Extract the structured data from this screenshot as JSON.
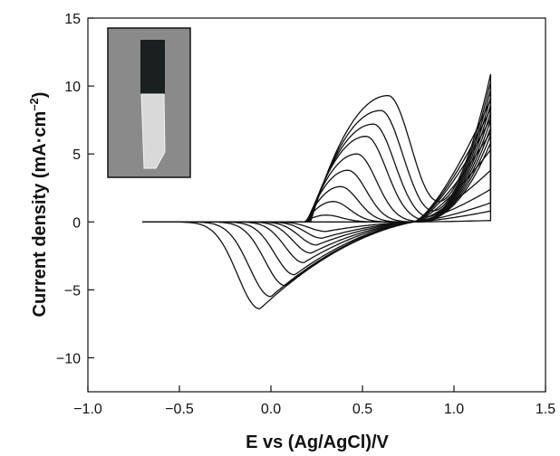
{
  "chart_data": {
    "type": "line",
    "xlabel": "E vs (Ag/AgCl)/V",
    "ylabel_main": "Current density (mA·cm",
    "ylabel_sup": "–2",
    "ylabel_end": ")",
    "xlim": [
      -1.0,
      1.5
    ],
    "ylim": [
      -12.5,
      15
    ],
    "x_ticks": [
      -1.0,
      -0.5,
      0.0,
      0.5,
      1.0,
      1.5
    ],
    "x_tick_labels": [
      "−1.0",
      "−0.5",
      "0.0",
      "0.5",
      "1.0",
      "1.5"
    ],
    "y_ticks": [
      -10,
      -5,
      0,
      5,
      10,
      15
    ],
    "y_tick_labels": [
      "−10",
      "−5",
      "0",
      "5",
      "10",
      "15"
    ],
    "grid": false,
    "inset": "photo of electrode: dark coated top section on light transparent substrate",
    "scan_range": [
      -0.7,
      1.2
    ],
    "series": [
      {
        "anodic_peak": [
          0.0,
          0.0
        ],
        "cathodic_peak": [
          0.0,
          0.0
        ],
        "end_current": 0.1
      },
      {
        "anodic_peak": [
          0.3,
          0.5
        ],
        "cathodic_peak": [
          0.3,
          -0.7
        ],
        "end_current": 0.8
      },
      {
        "anodic_peak": [
          0.34,
          1.5
        ],
        "cathodic_peak": [
          0.28,
          -1.2
        ],
        "end_current": 1.4
      },
      {
        "anodic_peak": [
          0.38,
          2.6
        ],
        "cathodic_peak": [
          0.25,
          -1.7
        ],
        "end_current": 2.4
      },
      {
        "anodic_peak": [
          0.42,
          3.8
        ],
        "cathodic_peak": [
          0.22,
          -2.3
        ],
        "end_current": 3.8
      },
      {
        "anodic_peak": [
          0.47,
          5.0
        ],
        "cathodic_peak": [
          0.18,
          -3.0
        ],
        "end_current": 5.3
      },
      {
        "anodic_peak": [
          0.52,
          6.3
        ],
        "cathodic_peak": [
          0.13,
          -3.9
        ],
        "end_current": 6.6
      },
      {
        "anodic_peak": [
          0.56,
          7.2
        ],
        "cathodic_peak": [
          0.08,
          -4.7
        ],
        "end_current": 7.6
      },
      {
        "anodic_peak": [
          0.6,
          8.2
        ],
        "cathodic_peak": [
          0.0,
          -5.5
        ],
        "end_current": 8.3
      },
      {
        "anodic_peak": [
          0.64,
          9.3
        ],
        "cathodic_peak": [
          -0.06,
          -6.4
        ],
        "end_current": 9.0
      }
    ]
  }
}
